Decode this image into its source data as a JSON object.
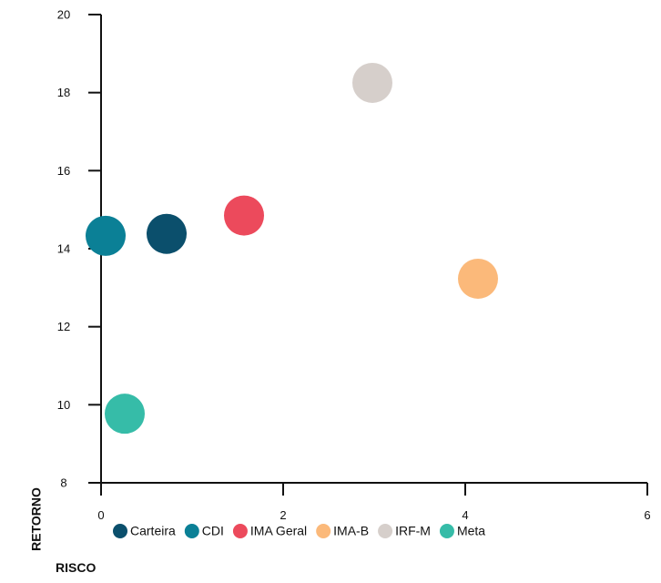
{
  "chart_data": {
    "type": "scatter",
    "title": "",
    "xlabel": "RISCO",
    "ylabel": "RETORNO",
    "xlim": [
      0,
      6
    ],
    "ylim": [
      8,
      20
    ],
    "xticks": [
      0,
      2,
      4,
      6
    ],
    "yticks": [
      8,
      10,
      12,
      14,
      16,
      18,
      20
    ],
    "grid": false,
    "legend_position": "bottom",
    "series": [
      {
        "name": "Carteira",
        "color": "#0b4f6c",
        "x": 0.72,
        "y": 14.38
      },
      {
        "name": "CDI",
        "color": "#0b8096",
        "x": 0.05,
        "y": 14.33
      },
      {
        "name": "IMA Geral",
        "color": "#ec4a5c",
        "x": 1.57,
        "y": 14.85
      },
      {
        "name": "IMA-B",
        "color": "#fbb97a",
        "x": 4.14,
        "y": 13.23
      },
      {
        "name": "IRF-M",
        "color": "#d6cfcb",
        "x": 2.98,
        "y": 18.25
      },
      {
        "name": "Meta",
        "color": "#36bca8",
        "x": 0.26,
        "y": 9.77
      }
    ]
  }
}
